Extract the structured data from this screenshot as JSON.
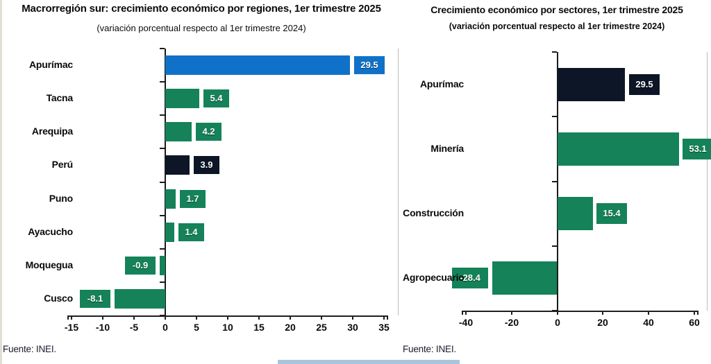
{
  "colors": {
    "blue": "#0F72C8",
    "green": "#15825A",
    "navy": "#0D1626",
    "axis": "#1a1a1a",
    "bottom_strip": "#A9C4DD"
  },
  "chart_data": [
    {
      "type": "bar",
      "orientation": "horizontal",
      "title": "Macrorregión sur: crecimiento económico por regiones, 1er trimestre 2025",
      "subtitle": "(variación porcentual respecto al 1er trimestre 2024)",
      "source": "Fuente: INEI.",
      "categories": [
        "Apurímac",
        "Tacna",
        "Arequipa",
        "Perú",
        "Puno",
        "Ayacucho",
        "Moquegua",
        "Cusco"
      ],
      "values": [
        29.5,
        5.4,
        4.2,
        3.9,
        1.7,
        1.4,
        -0.9,
        -8.1
      ],
      "labels": [
        "29.5",
        "5.4",
        "4.2",
        "3.9",
        "1.7",
        "1.4",
        "-0.9",
        "-8.1"
      ],
      "bar_colors": [
        "#0F72C8",
        "#15825A",
        "#15825A",
        "#0D1626",
        "#15825A",
        "#15825A",
        "#15825A",
        "#15825A"
      ],
      "x_ticks": [
        -15,
        -10,
        -5,
        0,
        5,
        10,
        15,
        20,
        25,
        30,
        35
      ],
      "xlim": [
        -15,
        35
      ],
      "grid": false,
      "legend": null,
      "xlabel": "",
      "ylabel": ""
    },
    {
      "type": "bar",
      "orientation": "horizontal",
      "title": "Crecimiento económico por sectores, 1er trimestre 2025",
      "subtitle": "(variación porcentual respecto al 1er trimestre 2024)",
      "source": "Fuente: INEI.",
      "categories": [
        "Apurímac",
        "Minería",
        "Construcción",
        "Agropecuario"
      ],
      "values": [
        29.5,
        53.1,
        15.4,
        -28.4
      ],
      "labels": [
        "29.5",
        "53.1",
        "15.4",
        "-28.4"
      ],
      "bar_colors": [
        "#0D1626",
        "#15825A",
        "#15825A",
        "#15825A"
      ],
      "x_ticks": [
        -40,
        -20,
        0,
        20,
        40,
        60
      ],
      "xlim": [
        -40,
        60
      ],
      "grid": false,
      "legend": null,
      "xlabel": "",
      "ylabel": ""
    }
  ]
}
